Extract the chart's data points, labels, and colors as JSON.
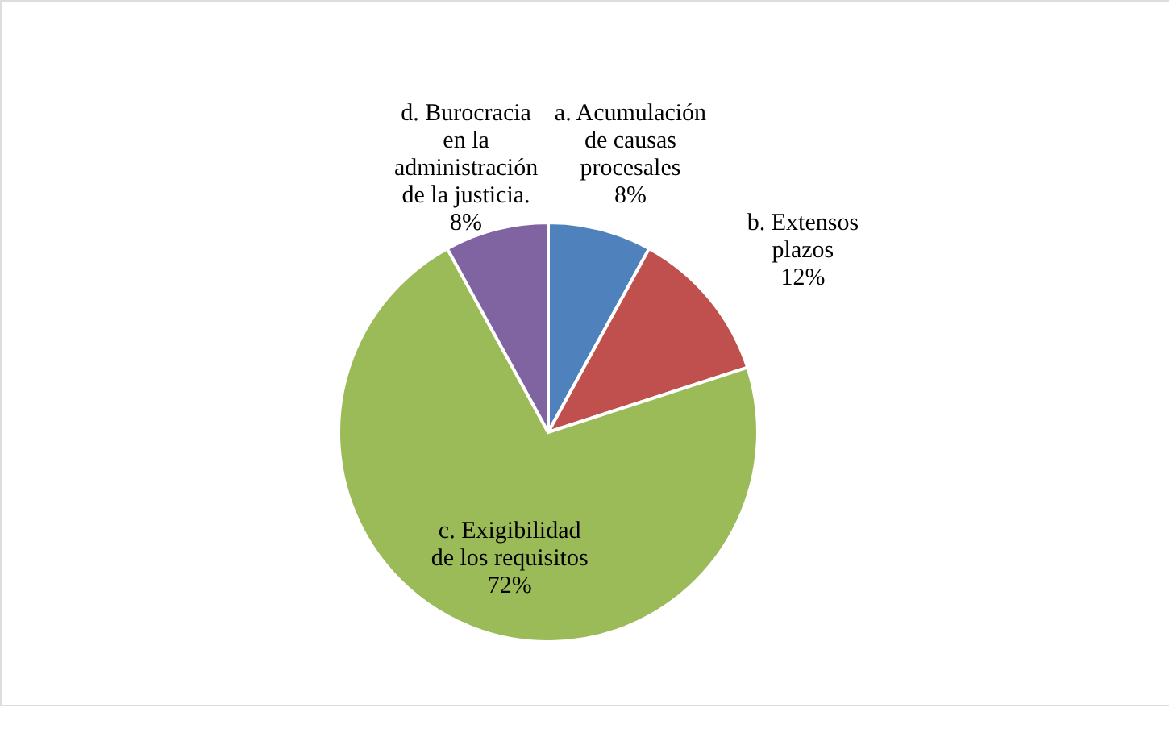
{
  "chart_data": {
    "type": "pie",
    "categories": [
      "a. Acumulación de causas procesales",
      "b. Extensos plazos",
      "c. Exigibilidad de los requisitos",
      "d. Burocracia en la administración de la justicia."
    ],
    "values": [
      8,
      12,
      72,
      8
    ],
    "colors": [
      "#4f81bd",
      "#c0504d",
      "#9bbb59",
      "#8064a2"
    ],
    "value_labels": [
      "8%",
      "12%",
      "72%",
      "8%"
    ]
  }
}
